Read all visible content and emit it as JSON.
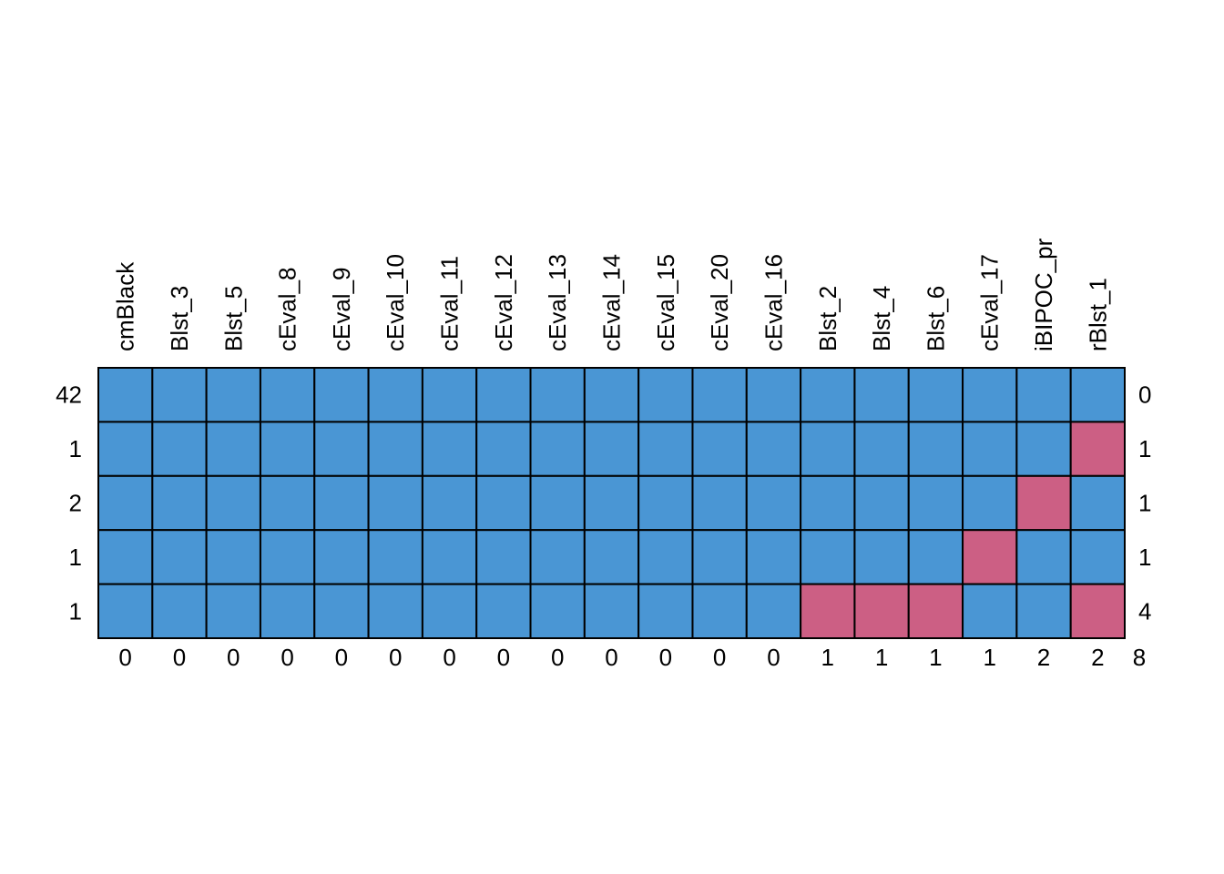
{
  "chart_data": {
    "type": "heatmap",
    "title": "",
    "xlabel": "",
    "ylabel": "",
    "variables": [
      "cmBlack",
      "Blst_3",
      "Blst_5",
      "cEval_8",
      "cEval_9",
      "cEval_10",
      "cEval_11",
      "cEval_12",
      "cEval_13",
      "cEval_14",
      "cEval_15",
      "cEval_20",
      "cEval_16",
      "Blst_2",
      "Blst_4",
      "Blst_6",
      "cEval_17",
      "iBIPOC_pr",
      "rBlst_1"
    ],
    "patterns": [
      {
        "count": "42",
        "missing_count": "0",
        "missing": [
          0,
          0,
          0,
          0,
          0,
          0,
          0,
          0,
          0,
          0,
          0,
          0,
          0,
          0,
          0,
          0,
          0,
          0,
          0
        ]
      },
      {
        "count": "1",
        "missing_count": "1",
        "missing": [
          0,
          0,
          0,
          0,
          0,
          0,
          0,
          0,
          0,
          0,
          0,
          0,
          0,
          0,
          0,
          0,
          0,
          0,
          1
        ]
      },
      {
        "count": "2",
        "missing_count": "1",
        "missing": [
          0,
          0,
          0,
          0,
          0,
          0,
          0,
          0,
          0,
          0,
          0,
          0,
          0,
          0,
          0,
          0,
          0,
          1,
          0
        ]
      },
      {
        "count": "1",
        "missing_count": "1",
        "missing": [
          0,
          0,
          0,
          0,
          0,
          0,
          0,
          0,
          0,
          0,
          0,
          0,
          0,
          0,
          0,
          0,
          1,
          0,
          0
        ]
      },
      {
        "count": "1",
        "missing_count": "4",
        "missing": [
          0,
          0,
          0,
          0,
          0,
          0,
          0,
          0,
          0,
          0,
          0,
          0,
          0,
          1,
          1,
          1,
          0,
          0,
          1
        ]
      }
    ],
    "column_missing_totals": [
      "0",
      "0",
      "0",
      "0",
      "0",
      "0",
      "0",
      "0",
      "0",
      "0",
      "0",
      "0",
      "0",
      "1",
      "1",
      "1",
      "1",
      "2",
      "2"
    ],
    "total_missing": "8",
    "colors": {
      "observed": "#4a96d4",
      "missing": "#cc5f84",
      "border": "#000000"
    }
  }
}
